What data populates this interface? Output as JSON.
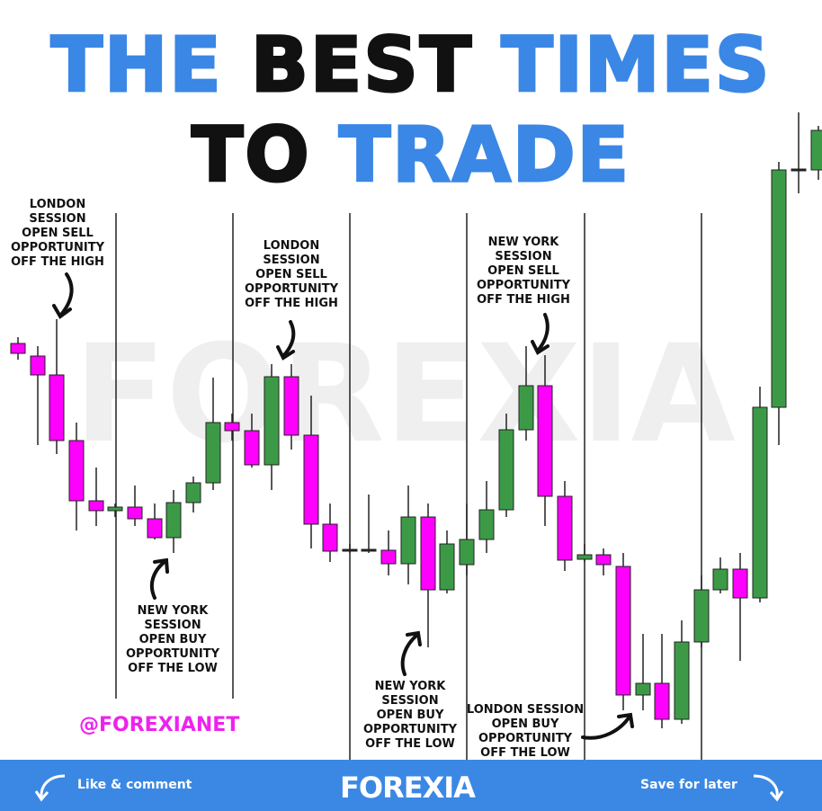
{
  "title": {
    "line1": [
      "THE",
      "BEST",
      "TIMES"
    ],
    "line2": [
      "TO",
      "TRADE"
    ]
  },
  "watermark": "FOREXIA",
  "annotations": [
    [
      "LONDON",
      "SESSION",
      "OPEN SELL",
      "OPPORTUNITY",
      "OFF THE HIGH"
    ],
    [
      "LONDON",
      "SESSION",
      "OPEN SELL",
      "OPPORTUNITY",
      "OFF THE HIGH"
    ],
    [
      "NEW YORK",
      "SESSION",
      "OPEN SELL",
      "OPPORTUNITY",
      "OFF THE HIGH"
    ],
    [
      "NEW YORK",
      "SESSION",
      "OPEN BUY",
      "OPPORTUNITY",
      "OFF THE LOW"
    ],
    [
      "NEW YORK",
      "SESSION",
      "OPEN BUY",
      "OPPORTUNITY",
      "OFF THE LOW"
    ],
    [
      "LONDON SESSION",
      "OPEN BUY",
      "OPPORTUNITY",
      "OFF THE LOW"
    ]
  ],
  "handle": "@FOREXIANET",
  "footer": {
    "left": "Like & comment",
    "brand": "FOREXIA",
    "right": "Save for later"
  }
}
